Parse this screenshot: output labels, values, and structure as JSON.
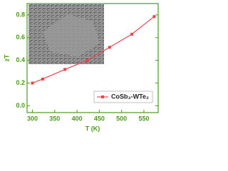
{
  "chart_data": {
    "type": "line",
    "x_label": "T (K)",
    "y_label": "zT",
    "x": [
      300,
      323,
      373,
      423,
      473,
      523,
      573
    ],
    "series": [
      {
        "name": "CoSb₃-WTe₂",
        "color": "#e8454d",
        "values": [
          0.2,
          0.235,
          0.32,
          0.4,
          0.515,
          0.63,
          0.785
        ]
      }
    ],
    "xlim": [
      288,
      582
    ],
    "xticks": [
      300,
      350,
      400,
      450,
      500,
      550
    ],
    "ylim": [
      -0.06,
      0.9
    ],
    "yticks": [
      {
        "value": 0,
        "label": "0.0"
      },
      {
        "value": 0.2,
        "label": "0.2"
      },
      {
        "value": 0.4,
        "label": "0.4"
      },
      {
        "value": 0.6,
        "label": "0.6"
      },
      {
        "value": 0.8,
        "label": "0.8"
      }
    ],
    "axis_color": "#4c9a1c",
    "legend": "lower right"
  }
}
